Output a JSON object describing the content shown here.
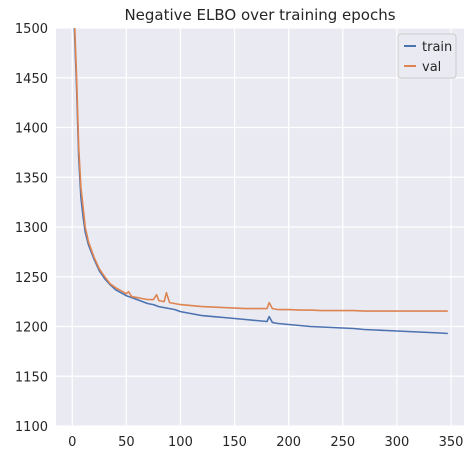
{
  "chart_data": {
    "type": "line",
    "title": "Negative ELBO over training epochs",
    "xlabel": "",
    "ylabel": "",
    "xlim": [
      -15,
      362
    ],
    "ylim": [
      1100,
      1500
    ],
    "x_ticks": [
      0,
      50,
      100,
      150,
      200,
      250,
      300,
      350
    ],
    "y_ticks": [
      1100,
      1150,
      1200,
      1250,
      1300,
      1350,
      1400,
      1450,
      1500
    ],
    "grid": true,
    "legend": "top-right",
    "background": "#eaeaf2",
    "series": [
      {
        "name": "train",
        "color": "#4c72b0",
        "x": [
          0,
          2,
          4,
          6,
          8,
          10,
          12,
          15,
          20,
          25,
          30,
          35,
          40,
          45,
          50,
          55,
          60,
          65,
          70,
          75,
          80,
          85,
          90,
          95,
          100,
          105,
          110,
          120,
          130,
          140,
          150,
          160,
          170,
          180,
          182,
          185,
          190,
          200,
          210,
          220,
          230,
          240,
          250,
          260,
          270,
          280,
          290,
          300,
          310,
          320,
          330,
          340,
          347
        ],
        "y": [
          1560,
          1500,
          1440,
          1370,
          1330,
          1310,
          1295,
          1282,
          1268,
          1256,
          1248,
          1242,
          1237,
          1234,
          1231,
          1229,
          1227,
          1225,
          1223,
          1222,
          1220,
          1219,
          1218,
          1217,
          1215,
          1214,
          1213,
          1211,
          1210,
          1209,
          1208,
          1207,
          1206,
          1205,
          1210,
          1204,
          1203,
          1202,
          1201,
          1200,
          1199.5,
          1199,
          1198.5,
          1198,
          1197,
          1196.5,
          1196,
          1195.5,
          1195,
          1194.5,
          1194,
          1193.5,
          1193
        ]
      },
      {
        "name": "val",
        "color": "#dd8452",
        "x": [
          0,
          2,
          4,
          6,
          8,
          10,
          12,
          15,
          20,
          25,
          30,
          35,
          40,
          45,
          50,
          52,
          55,
          60,
          65,
          70,
          75,
          78,
          80,
          85,
          87,
          90,
          95,
          100,
          110,
          120,
          130,
          140,
          150,
          160,
          170,
          180,
          182,
          185,
          190,
          200,
          210,
          220,
          230,
          240,
          250,
          260,
          270,
          280,
          290,
          300,
          310,
          320,
          330,
          340,
          347
        ],
        "y": [
          1560,
          1510,
          1450,
          1380,
          1340,
          1320,
          1300,
          1285,
          1270,
          1258,
          1250,
          1243,
          1239,
          1236,
          1233,
          1235,
          1230,
          1229,
          1228,
          1227,
          1227,
          1232,
          1226,
          1225,
          1234,
          1224,
          1223,
          1222,
          1221,
          1220,
          1219.5,
          1219,
          1218.5,
          1218,
          1218,
          1218,
          1224,
          1218,
          1217,
          1217,
          1216.5,
          1216.5,
          1216,
          1216,
          1216,
          1216,
          1215.5,
          1215.5,
          1215.5,
          1215.5,
          1215.5,
          1215.5,
          1215.5,
          1215.5,
          1215.5
        ]
      }
    ]
  }
}
